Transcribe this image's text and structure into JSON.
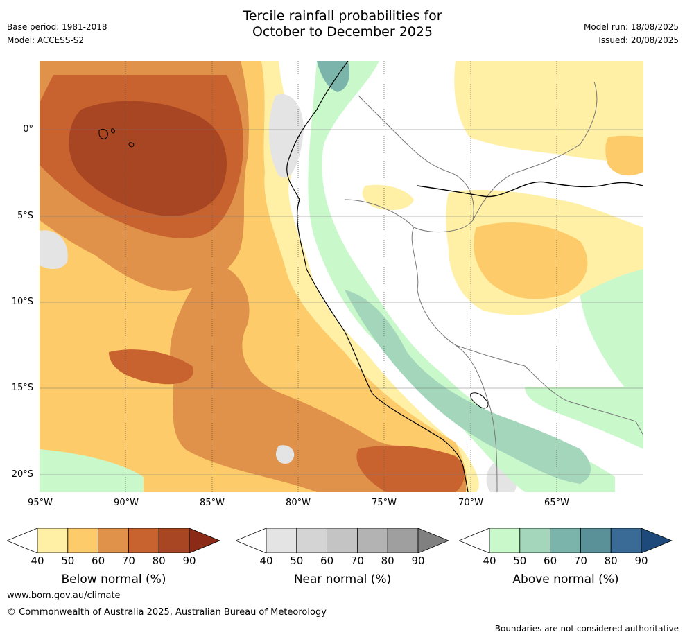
{
  "header": {
    "title_line1": "Tercile rainfall probabilities for",
    "title_line2": "October to December 2025",
    "base_period": "Base period: 1981-2018",
    "model": "Model: ACCESS-S2",
    "model_run": "Model run: 18/08/2025",
    "issued": "Issued: 20/08/2025"
  },
  "axes": {
    "lat_labels": [
      "0°",
      "5°S",
      "10°S",
      "15°S",
      "20°S"
    ],
    "lon_labels": [
      "95°W",
      "90°W",
      "85°W",
      "80°W",
      "75°W",
      "70°W",
      "65°W"
    ]
  },
  "legends": [
    {
      "title": "Below normal (%)",
      "ticks": [
        "40",
        "50",
        "60",
        "70",
        "80",
        "90"
      ],
      "colors": [
        "#fff0a5",
        "#fdcb6a",
        "#e0914a",
        "#c8622f",
        "#a84522",
        "#8a2a17"
      ]
    },
    {
      "title": "Near normal (%)",
      "ticks": [
        "40",
        "50",
        "60",
        "70",
        "80",
        "90"
      ],
      "colors": [
        "#e4e4e4",
        "#d4d4d4",
        "#c4c4c4",
        "#b3b3b3",
        "#9f9f9f",
        "#808080"
      ]
    },
    {
      "title": "Above normal (%)",
      "ticks": [
        "40",
        "50",
        "60",
        "70",
        "80",
        "90"
      ],
      "colors": [
        "#c9f8cb",
        "#a3d6ba",
        "#7ab4ab",
        "#5a9199",
        "#3a6b97",
        "#1d4a7a"
      ]
    }
  ],
  "footer": {
    "url": "www.bom.gov.au/climate",
    "copyright": "© Commonwealth of Australia 2025, Australian Bureau of Meteorology",
    "note": "Boundaries are not considered authoritative"
  }
}
